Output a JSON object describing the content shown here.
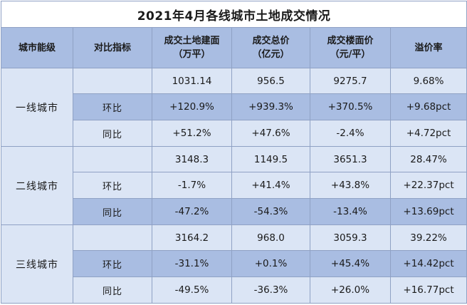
{
  "title": "2021年4月各线城市土地成交情况",
  "headers": {
    "tier": "城市能级",
    "metric": "对比指标",
    "area": [
      "成交土地建面",
      "（万平）"
    ],
    "total": [
      "成交总价",
      "（亿元）"
    ],
    "price": [
      "成交楼面价",
      "（元/平）"
    ],
    "premium": "溢价率"
  },
  "groups": [
    {
      "tier": "一线城市",
      "rows": [
        {
          "label": "",
          "area": "1031.14",
          "total": "956.5",
          "price": "9275.7",
          "premium": "9.68%"
        },
        {
          "label": "环比",
          "area": "+120.9%",
          "total": "+939.3%",
          "price": "+370.5%",
          "premium": "+9.68pct"
        },
        {
          "label": "同比",
          "area": "+51.2%",
          "total": "+47.6%",
          "price": "-2.4%",
          "premium": "+4.72pct"
        }
      ]
    },
    {
      "tier": "二线城市",
      "rows": [
        {
          "label": "",
          "area": "3148.3",
          "total": "1149.5",
          "price": "3651.3",
          "premium": "28.47%"
        },
        {
          "label": "环比",
          "area": "-1.7%",
          "total": "+41.4%",
          "price": "+43.8%",
          "premium": "+22.37pct"
        },
        {
          "label": "同比",
          "area": "-47.2%",
          "total": "-54.3%",
          "price": "-13.4%",
          "premium": "+13.69pct"
        }
      ]
    },
    {
      "tier": "三线城市",
      "rows": [
        {
          "label": "",
          "area": "3164.2",
          "total": "968.0",
          "price": "3059.3",
          "premium": "39.22%"
        },
        {
          "label": "环比",
          "area": "-31.1%",
          "total": "+0.1%",
          "price": "+45.4%",
          "premium": "+14.42pct"
        },
        {
          "label": "同比",
          "area": "-49.5%",
          "total": "-36.3%",
          "price": "+26.0%",
          "premium": "+16.77pct"
        }
      ]
    }
  ]
}
